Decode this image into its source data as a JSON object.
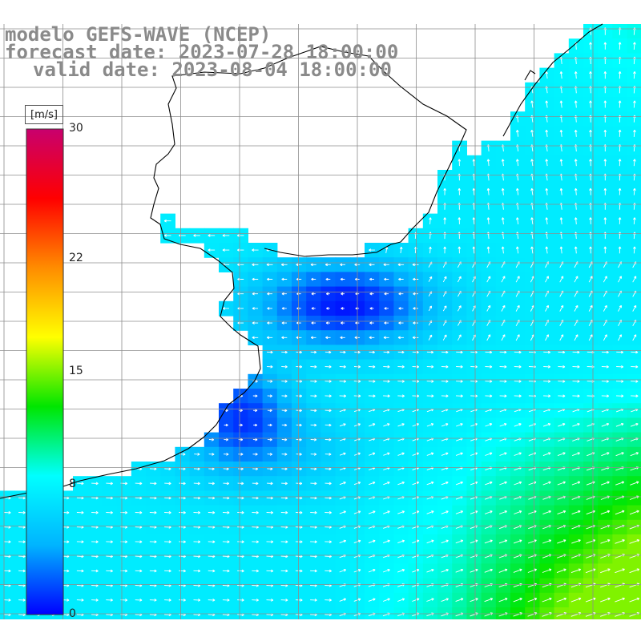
{
  "header": {
    "model_line": "modelo GEFS-WAVE (NCEP)",
    "forecast_line": "forecast date: 2023-07-28 18:00:00",
    "valid_line": "valid date: 2023-08-04 18:00:00"
  },
  "colorbar": {
    "unit": "[m/s]",
    "ticks": [
      {
        "value": 30,
        "label": "30"
      },
      {
        "value": 22,
        "label": "22"
      },
      {
        "value": 15,
        "label": "15"
      },
      {
        "value": 8,
        "label": "8"
      },
      {
        "value": 0,
        "label": "0"
      }
    ],
    "range": [
      0,
      30
    ],
    "colors": [
      "#0000ff",
      "#00b4ff",
      "#00ffff",
      "#00e600",
      "#ffff00",
      "#ff8c00",
      "#ff0000",
      "#c8006e"
    ]
  },
  "map": {
    "variable": "wind speed and direction",
    "land_color": "#ffffff",
    "grid_color": "#8c8c8c",
    "coast_color": "#000000"
  }
}
